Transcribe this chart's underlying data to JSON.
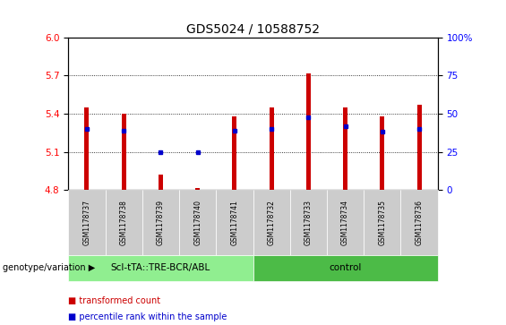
{
  "title": "GDS5024 / 10588752",
  "samples": [
    "GSM1178737",
    "GSM1178738",
    "GSM1178739",
    "GSM1178740",
    "GSM1178741",
    "GSM1178732",
    "GSM1178733",
    "GSM1178734",
    "GSM1178735",
    "GSM1178736"
  ],
  "bar_tops": [
    5.45,
    5.4,
    4.92,
    4.82,
    5.38,
    5.45,
    5.72,
    5.45,
    5.38,
    5.47
  ],
  "blue_markers": [
    5.28,
    5.27,
    5.1,
    5.1,
    5.27,
    5.28,
    5.37,
    5.3,
    5.26,
    5.28
  ],
  "bar_base": 4.8,
  "ylim_left": [
    4.8,
    6.0
  ],
  "ylim_right": [
    0,
    100
  ],
  "yticks_left": [
    4.8,
    5.1,
    5.4,
    5.7,
    6.0
  ],
  "yticks_right": [
    0,
    25,
    50,
    75,
    100
  ],
  "groups": [
    {
      "label": "Scl-tTA::TRE-BCR/ABL",
      "n_samples": 5,
      "color": "#90EE90"
    },
    {
      "label": "control",
      "n_samples": 5,
      "color": "#4CBB47"
    }
  ],
  "group_label_prefix": "genotype/variation",
  "bar_color": "#CC0000",
  "blue_color": "#0000CC",
  "sample_bg": "#cccccc",
  "legend_items": [
    {
      "label": "transformed count",
      "color": "#CC0000"
    },
    {
      "label": "percentile rank within the sample",
      "color": "#0000CC"
    }
  ],
  "title_fontsize": 10,
  "tick_fontsize": 7.5,
  "label_fontsize": 7.5
}
